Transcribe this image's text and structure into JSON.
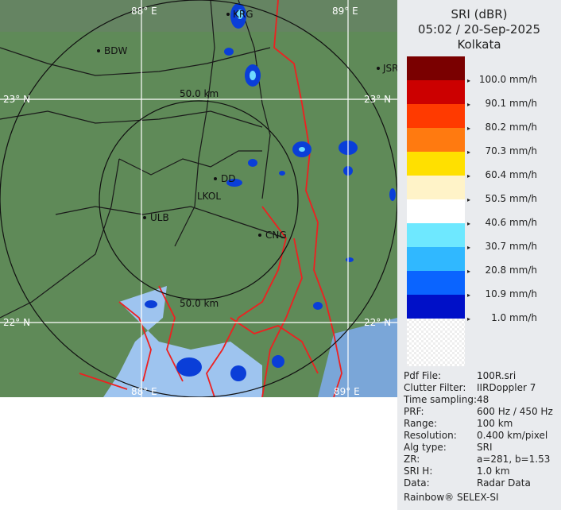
{
  "legend": {
    "product": "SRI (dBR)",
    "datetime": "05:02 / 20-Sep-2025",
    "site": "Kolkata",
    "colors": [
      "#7a0000",
      "#cc0000",
      "#ff3a00",
      "#ff7a10",
      "#ffe000",
      "#fff3c8",
      "#ffffff",
      "#6ee8ff",
      "#30b8ff",
      "#0a64ff",
      "#0010c8"
    ],
    "labels": [
      "100.0 mm/h",
      "90.1 mm/h",
      "80.2 mm/h",
      "70.3 mm/h",
      "60.4 mm/h",
      "50.5 mm/h",
      "40.6 mm/h",
      "30.7 mm/h",
      "20.8 mm/h",
      "10.9 mm/h",
      "1.0 mm/h"
    ]
  },
  "info": [
    {
      "key": "Pdf File:",
      "value": "100R.sri"
    },
    {
      "key": "Clutter Filter:",
      "value": "IIRDoppler 7"
    },
    {
      "key": "Time sampling:",
      "value": "48"
    },
    {
      "key": "PRF:",
      "value": "600 Hz / 450 Hz"
    },
    {
      "key": "Range:",
      "value": "100 km"
    },
    {
      "key": "Resolution:",
      "value": "0.400 km/pixel"
    },
    {
      "key": "Alg type:",
      "value": "SRI"
    },
    {
      "key": "ZR:",
      "value": "a=281, b=1.53"
    },
    {
      "key": "SRI H:",
      "value": "1.0 km"
    },
    {
      "key": "Data:",
      "value": "Radar Data"
    }
  ],
  "footer": "Rainbow® SELEX-SI",
  "map": {
    "grid": {
      "lon_top_left": "88° E",
      "lon_top_right": "89° E",
      "lon_bottom_left": "88° E",
      "lon_bottom_right": "89° E",
      "lat_top_left": "23° N",
      "lat_top_right": "23° N",
      "lat_bottom_left": "22° N",
      "lat_bottom_right": "22° N"
    },
    "ring_labels": {
      "top": "50.0 km",
      "bottom": "50.0 km"
    },
    "cities": [
      "KRG",
      "BDW",
      "JSR",
      "DD",
      "LKOL",
      "ULB",
      "CNG"
    ]
  }
}
